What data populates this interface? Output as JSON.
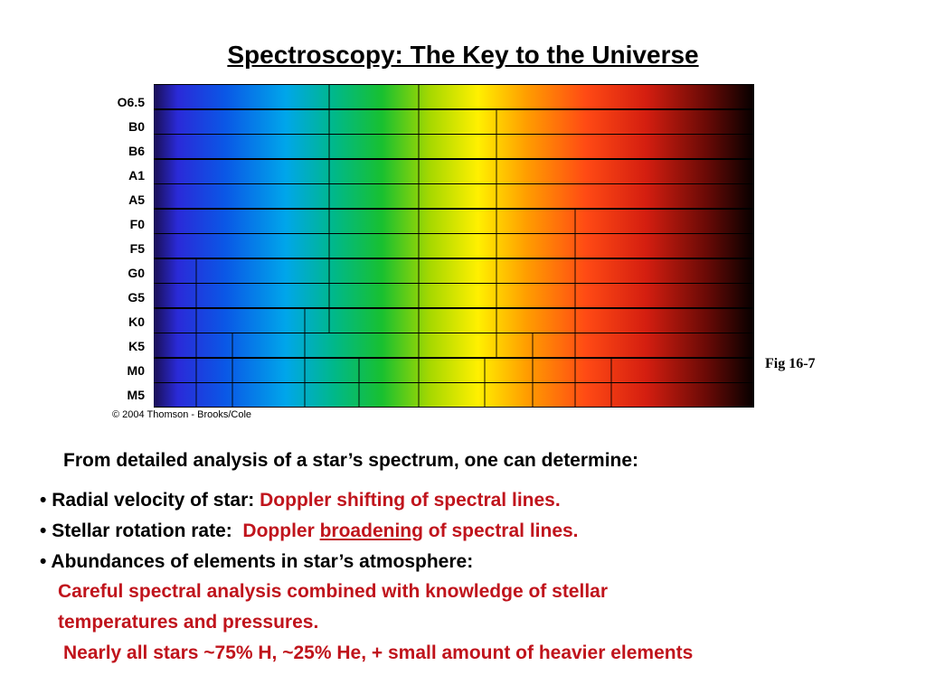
{
  "title": "Spectroscopy:  The Key to the Universe",
  "spectrum": {
    "classes": [
      "O6.5",
      "B0",
      "B6",
      "A1",
      "A5",
      "F0",
      "F5",
      "G0",
      "G5",
      "K0",
      "K5",
      "M0",
      "M5"
    ],
    "copyright": "© 2004 Thomson - Brooks/Cole",
    "figure_label": "Fig 16-7"
  },
  "intro": "From detailed analysis of a star’s spectrum, one can determine:",
  "bullets": [
    {
      "marker": "•",
      "label": "Radial velocity of star:",
      "detail": "Doppler shifting of spectral lines."
    },
    {
      "marker": "•",
      "label": "Stellar rotation rate:",
      "detail_pre": "Doppler",
      "detail_em": "broadening",
      "detail_post": "of spectral lines."
    },
    {
      "marker": "•",
      "label": "Abundances of elements in star’s atmosphere:"
    }
  ],
  "abundance_detail_1": "Careful spectral analysis combined with knowledge of stellar",
  "abundance_detail_2": "temperatures and pressures.",
  "abundance_summary": "Nearly all stars ~75% H, ~25% He, + small amount of heavier elements"
}
